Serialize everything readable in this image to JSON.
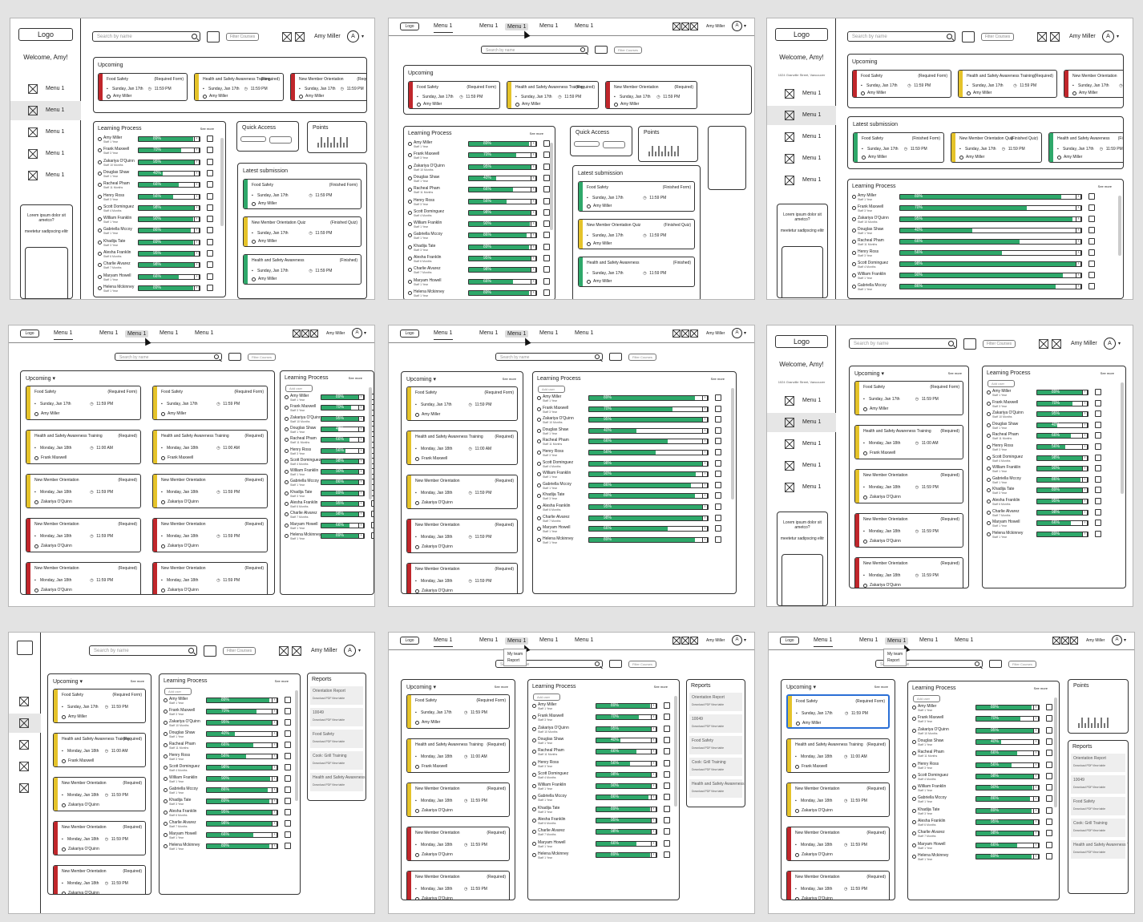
{
  "brand": {
    "logo": "Logo"
  },
  "welcome": "Welcome, Amy!",
  "address": "1024 Granville Street, Vancouver",
  "user": {
    "name": "Amy Miller",
    "avatar": "A"
  },
  "search": {
    "placeholder": "Search by name",
    "placeholder_short": "Search by name"
  },
  "filter_label": "Filter Courses",
  "menu": [
    "Menu 1",
    "Menu 1",
    "Menu 1",
    "Menu 1",
    "Menu 1"
  ],
  "dropdown": [
    "My team",
    "Report"
  ],
  "lorem": "Lorem ipsum dolor sit ametco?",
  "lorem2": "meetetur sadipscing elitr",
  "sections": {
    "upcoming": "Upcoming",
    "learning": "Learning Process",
    "quick": "Quick Access",
    "points": "Points",
    "latest": "Latest submission",
    "reports": "Reports",
    "see_more": "See more",
    "add_user": "Add user"
  },
  "upcoming": [
    {
      "title": "Food Safety",
      "tag": "(Required Form)",
      "date": "Sunday, Jan 17th",
      "time": "11:59 PM",
      "person": "Amy Miller",
      "color": "red"
    },
    {
      "title": "Health and Safety Awareness Training",
      "tag": "(Required)",
      "date": "Sunday, Jan 17th",
      "time": "11:59 PM",
      "person": "Amy Miller",
      "color": "yel"
    },
    {
      "title": "New Member Orientation",
      "tag": "(Required)",
      "date": "Sunday, Jan 17th",
      "time": "11:59 PM",
      "person": "Amy Miller",
      "color": "red"
    }
  ],
  "upcoming_list": [
    {
      "title": "Food Safety",
      "tag": "(Required Form)",
      "date": "Sunday, Jan 17th",
      "time": "11:59 PM",
      "person": "Amy Miller",
      "color": "yel"
    },
    {
      "title": "Health and Safety Awareness Training",
      "tag": "(Required)",
      "date": "Monday, Jan 18th",
      "time": "11:00 AM",
      "person": "Frank Maxwell",
      "color": "yel"
    },
    {
      "title": "New Member Orientation",
      "tag": "(Required)",
      "date": "Monday, Jan 18th",
      "time": "11:59 PM",
      "person": "Zakariya O'Quinn",
      "color": "yel"
    },
    {
      "title": "New Member Orientation",
      "tag": "(Required)",
      "date": "Monday, Jan 18th",
      "time": "11:59 PM",
      "person": "Zakariya O'Quinn",
      "color": "red"
    },
    {
      "title": "New Member Orientation",
      "tag": "(Required)",
      "date": "Monday, Jan 18th",
      "time": "11:59 PM",
      "person": "Zakariya O'Quinn",
      "color": "red"
    }
  ],
  "latest": [
    {
      "title": "Food Safety",
      "tag": "(Finished Form)",
      "date": "Sunday, Jan 17th",
      "time": "11:59 PM",
      "person": "Amy Miller",
      "color": "grn"
    },
    {
      "title": "New Member Orientation Quiz",
      "tag": "(Finished Quiz)",
      "date": "Sunday, Jan 17th",
      "time": "11:59 PM",
      "person": "Amy Miller",
      "color": "yel"
    },
    {
      "title": "Health and Safety Awareness",
      "tag": "(Finished)",
      "date": "Sunday, Jan 17th",
      "time": "11:59 PM",
      "person": "Amy Miller",
      "color": "grn"
    }
  ],
  "learners": [
    {
      "name": "Amy Miller",
      "sub": "Staff 1 Year",
      "pct": "89%",
      "v": 0.89
    },
    {
      "name": "Frank Maxwell",
      "sub": "Staff 3 Year",
      "pct": "70%",
      "v": 0.7
    },
    {
      "name": "Zakariya O'Quinn",
      "sub": "Staff 10 Months",
      "pct": "95%",
      "v": 0.95
    },
    {
      "name": "Douglas Shaw",
      "sub": "Staff 1 Year",
      "pct": "40%",
      "v": 0.4
    },
    {
      "name": "Racheal Pham",
      "sub": "Staff 11 Months",
      "pct": "66%",
      "v": 0.66
    },
    {
      "name": "Henry Ross",
      "sub": "Staff 3 Year",
      "pct": "56%",
      "v": 0.56
    },
    {
      "name": "Scott Dominguez",
      "sub": "Staff 4 Months",
      "pct": "98%",
      "v": 0.98
    },
    {
      "name": "William Franklin",
      "sub": "Staff 1 Year",
      "pct": "90%",
      "v": 0.9
    },
    {
      "name": "Gabriella Mccoy",
      "sub": "Staff 1 Year",
      "pct": "86%",
      "v": 0.86
    },
    {
      "name": "Khadija Tate",
      "sub": "Staff 3 Year",
      "pct": "89%",
      "v": 0.89
    },
    {
      "name": "Alesha Franklin",
      "sub": "Staff 6 Months",
      "pct": "95%",
      "v": 0.95
    },
    {
      "name": "Charlie Alvarez",
      "sub": "Staff 7 Months",
      "pct": "98%",
      "v": 0.98
    },
    {
      "name": "Maryam Howell",
      "sub": "Staff 1 Year",
      "pct": "66%",
      "v": 0.66
    },
    {
      "name": "Helena Mckinney",
      "sub": "Staff 1 Year",
      "pct": "89%",
      "v": 0.89
    }
  ],
  "reports": [
    {
      "title": "Orientation Report",
      "a": "Download PDF",
      "b": "View table"
    },
    {
      "title": "10049",
      "a": "Download PDF",
      "b": "View table"
    },
    {
      "title": "Food Safety",
      "a": "Download PDF",
      "b": "View table"
    },
    {
      "title": "Cook: Grill Training",
      "a": "Download PDF",
      "b": "View table"
    },
    {
      "title": "Health and Safety Awareness Training",
      "a": "Download PDF",
      "b": "View table"
    }
  ],
  "colors": {
    "red": "#c0262b",
    "yellow": "#e5c32a",
    "green": "#2ea86a"
  }
}
